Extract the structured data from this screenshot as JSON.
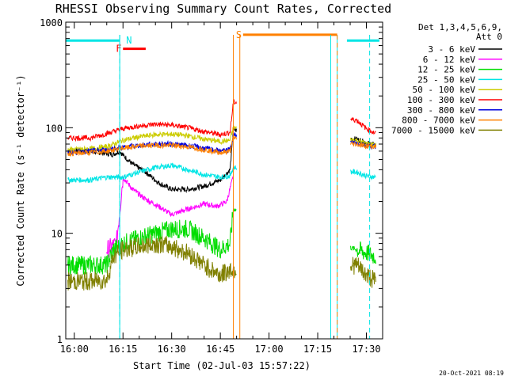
{
  "chart_data": {
    "type": "line",
    "title": "RHESSI Observing Summary Count Rates, Corrected",
    "xlabel": "Start Time (02-Jul-03 15:57:22)",
    "ylabel": "Corrected Count Rate (s⁻¹ detector⁻¹)",
    "y_scale": "log",
    "ylim": [
      1,
      1000
    ],
    "xlim": [
      "15:57:22",
      "17:35:00"
    ],
    "x_ticks": [
      "16:00",
      "16:15",
      "16:30",
      "16:45",
      "17:00",
      "17:15",
      "17:30"
    ],
    "y_ticks": [
      "1",
      "10",
      "100",
      "1000"
    ],
    "legend_header": [
      "Det 1,3,4,5,6,9,",
      "Att 0"
    ],
    "legend_position": "top-right",
    "data_gaps": [
      [
        "16:50",
        "17:25"
      ]
    ],
    "series": [
      {
        "name": "3 - 6 keV",
        "color": "#000000",
        "x": [
          "15:58",
          "16:05",
          "16:10",
          "16:12",
          "16:14",
          "16:15",
          "16:18",
          "16:22",
          "16:26",
          "16:30",
          "16:35",
          "16:40",
          "16:45",
          "16:48",
          "16:49",
          "17:27",
          "17:30",
          "17:33"
        ],
        "y": [
          60,
          60,
          57,
          56,
          60,
          55,
          45,
          38,
          30,
          26,
          26,
          28,
          32,
          40,
          95,
          78,
          72,
          68
        ]
      },
      {
        "name": "6 - 12 keV",
        "color": "#ff00ff",
        "x": [
          "16:10",
          "16:13",
          "16:15",
          "16:18",
          "16:22",
          "16:26",
          "16:30",
          "16:35",
          "16:40",
          "16:44",
          "16:47",
          "16:49"
        ],
        "y": [
          7,
          8,
          34,
          26,
          21,
          18,
          15,
          17,
          19,
          18,
          20,
          35
        ]
      },
      {
        "name": "12 - 25 keV",
        "color": "#00dd00",
        "x": [
          "15:58",
          "16:05",
          "16:10",
          "16:12",
          "16:15",
          "16:20",
          "16:25",
          "16:30",
          "16:35",
          "16:40",
          "16:45",
          "16:48",
          "16:49",
          "17:27",
          "17:30",
          "17:33"
        ],
        "y": [
          5,
          5,
          5,
          7,
          8,
          9,
          10,
          11,
          11,
          9,
          7,
          8,
          17,
          7,
          6.5,
          6
        ]
      },
      {
        "name": "25 - 50 keV",
        "color": "#00e5e5",
        "x": [
          "15:58",
          "16:05",
          "16:10",
          "16:15",
          "16:20",
          "16:25",
          "16:30",
          "16:35",
          "16:40",
          "16:45",
          "16:48",
          "16:49",
          "17:27",
          "17:30",
          "17:33"
        ],
        "y": [
          32,
          32,
          34,
          34,
          38,
          42,
          44,
          40,
          36,
          34,
          35,
          42,
          38,
          35,
          34
        ]
      },
      {
        "name": "50 - 100 keV",
        "color": "#cccc00",
        "x": [
          "15:58",
          "16:05",
          "16:10",
          "16:15",
          "16:20",
          "16:25",
          "16:30",
          "16:35",
          "16:40",
          "16:45",
          "16:48",
          "16:49",
          "17:27",
          "17:30",
          "17:33"
        ],
        "y": [
          62,
          63,
          66,
          76,
          82,
          86,
          87,
          84,
          78,
          74,
          76,
          100,
          76,
          71,
          68
        ]
      },
      {
        "name": "100 - 300 keV",
        "color": "#ff0000",
        "x": [
          "15:58",
          "16:05",
          "16:10",
          "16:15",
          "16:20",
          "16:25",
          "16:30",
          "16:35",
          "16:40",
          "16:45",
          "16:48",
          "16:49",
          "17:27",
          "17:30",
          "17:33"
        ],
        "y": [
          80,
          80,
          88,
          98,
          104,
          108,
          106,
          100,
          92,
          86,
          90,
          175,
          118,
          98,
          88
        ]
      },
      {
        "name": "300 - 800 keV",
        "color": "#0000dd",
        "x": [
          "15:58",
          "16:05",
          "16:10",
          "16:15",
          "16:20",
          "16:25",
          "16:30",
          "16:35",
          "16:40",
          "16:45",
          "16:48",
          "16:49",
          "17:27",
          "17:30",
          "17:33"
        ],
        "y": [
          58,
          60,
          62,
          65,
          68,
          70,
          70,
          68,
          64,
          60,
          62,
          85,
          72,
          68,
          66
        ]
      },
      {
        "name": "800 - 7000 keV",
        "color": "#ff8000",
        "x": [
          "15:58",
          "16:05",
          "16:10",
          "16:15",
          "16:20",
          "16:25",
          "16:30",
          "16:35",
          "16:40",
          "16:45",
          "16:48",
          "16:49",
          "17:27",
          "17:30",
          "17:33"
        ],
        "y": [
          57,
          58,
          60,
          64,
          67,
          68,
          68,
          66,
          62,
          58,
          60,
          80,
          70,
          67,
          66
        ]
      },
      {
        "name": "7000 - 15000 keV",
        "color": "#808000",
        "x": [
          "15:58",
          "16:05",
          "16:10",
          "16:12",
          "16:15",
          "16:20",
          "16:25",
          "16:30",
          "16:35",
          "16:40",
          "16:45",
          "16:48",
          "17:27",
          "17:30",
          "17:33"
        ],
        "y": [
          3.5,
          3.5,
          3.6,
          6,
          7,
          7.5,
          8,
          7.5,
          6.5,
          5,
          4,
          4.5,
          5,
          4,
          3.5
        ]
      }
    ],
    "flag_bars": [
      {
        "label": "",
        "color": "#00e5e5",
        "x": [
          "15:57:22",
          "16:14"
        ],
        "y": 670
      },
      {
        "label": "N",
        "color": "#00e5e5",
        "x": [
          "16:15",
          "16:15"
        ],
        "y": 670
      },
      {
        "label": "F",
        "color": "#ff0000",
        "x": [
          "16:15",
          "16:22"
        ],
        "y": 560
      },
      {
        "label": "S",
        "color": "#ff8000",
        "x": [
          "16:52",
          "17:21"
        ],
        "y": 760
      },
      {
        "label": "",
        "color": "#00e5e5",
        "x": [
          "17:24",
          "17:34"
        ],
        "y": 670
      }
    ],
    "vertical_markers": [
      {
        "color": "#00e5e5",
        "style": "dashed",
        "x": "16:14"
      },
      {
        "color": "#00e5e5",
        "style": "solid",
        "x": "16:14"
      },
      {
        "color": "#ff8000",
        "style": "solid",
        "x": "16:49"
      },
      {
        "color": "#ff8000",
        "style": "solid",
        "x": "16:51"
      },
      {
        "color": "#00e5e5",
        "style": "solid",
        "x": "17:19"
      },
      {
        "color": "#00e5e5",
        "style": "solid",
        "x": "17:21"
      },
      {
        "color": "#ff8000",
        "style": "dashed",
        "x": "17:21"
      },
      {
        "color": "#00e5e5",
        "style": "dashed",
        "x": "17:31"
      }
    ]
  },
  "footer_timestamp": "20-Oct-2021 08:19"
}
